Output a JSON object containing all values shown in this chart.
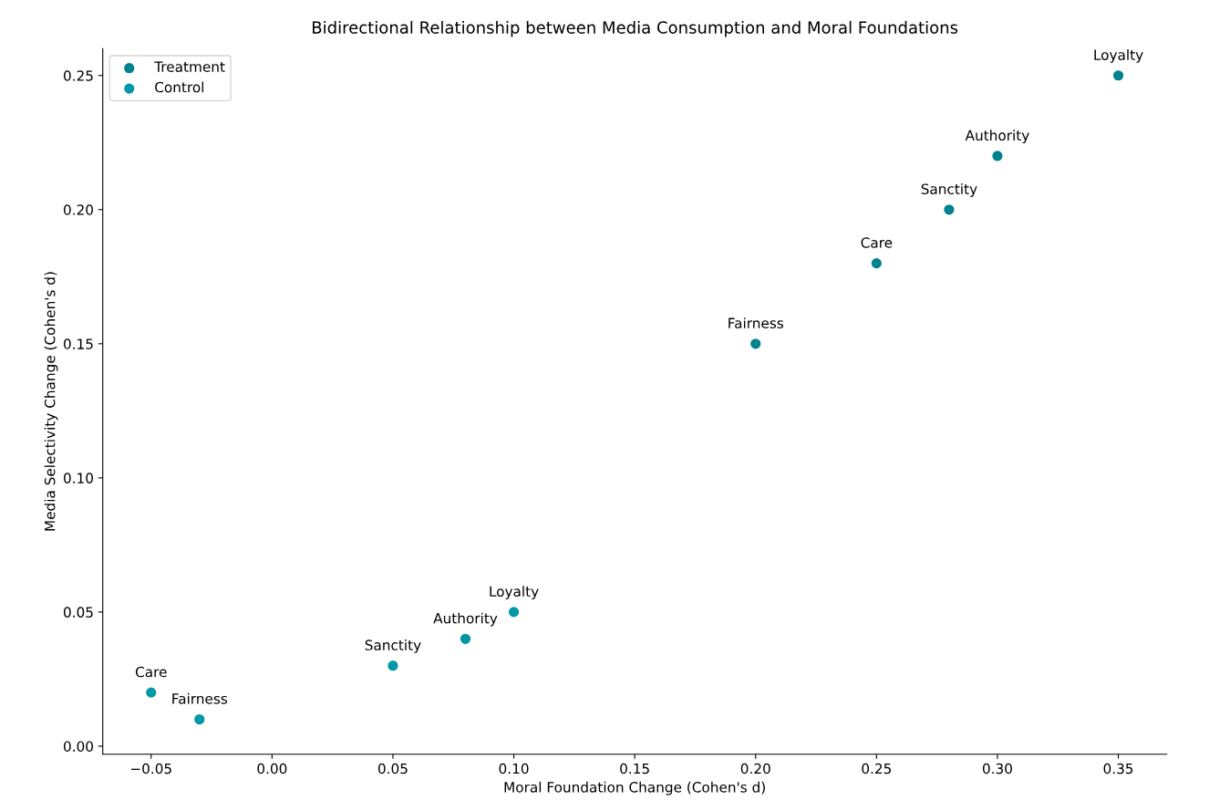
{
  "chart_data": {
    "type": "scatter",
    "title": "Bidirectional Relationship between Media Consumption and Moral Foundations",
    "xlabel": "Moral Foundation Change (Cohen's d)",
    "ylabel": "Media Selectivity Change (Cohen's d)",
    "series": [
      {
        "name": "Treatment",
        "color": "#00838f",
        "x": [
          0.25,
          0.2,
          0.35,
          0.3,
          0.28
        ],
        "values": [
          0.18,
          0.15,
          0.25,
          0.22,
          0.2
        ]
      },
      {
        "name": "Control",
        "color": "#0097a7",
        "x": [
          -0.05,
          -0.03,
          0.1,
          0.08,
          0.05
        ],
        "values": [
          0.02,
          0.01,
          0.05,
          0.04,
          0.03
        ]
      }
    ],
    "annotations": [
      {
        "text": "Care",
        "x": 0.25,
        "y": 0.18
      },
      {
        "text": "Fairness",
        "x": 0.2,
        "y": 0.15
      },
      {
        "text": "Loyalty",
        "x": 0.35,
        "y": 0.25
      },
      {
        "text": "Authority",
        "x": 0.3,
        "y": 0.22
      },
      {
        "text": "Sanctity",
        "x": 0.28,
        "y": 0.2
      },
      {
        "text": "Care",
        "x": -0.05,
        "y": 0.02
      },
      {
        "text": "Fairness",
        "x": -0.03,
        "y": 0.01
      },
      {
        "text": "Loyalty",
        "x": 0.1,
        "y": 0.05
      },
      {
        "text": "Authority",
        "x": 0.08,
        "y": 0.04
      },
      {
        "text": "Sanctity",
        "x": 0.05,
        "y": 0.03
      }
    ],
    "xlim": [
      -0.07,
      0.37
    ],
    "xticks": [
      {
        "value": -0.05,
        "label": "−0.05"
      },
      {
        "value": 0,
        "label": "0.00"
      },
      0.05,
      {
        "value": 0.1,
        "label": "0.10"
      },
      0.15,
      {
        "value": 0.2,
        "label": "0.20"
      },
      0.25,
      {
        "value": 0.3,
        "label": "0.30"
      },
      0.35
    ],
    "ylim": [
      -0.003,
      0.26
    ],
    "yticks": [
      {
        "value": 0,
        "label": "0.00"
      },
      0.05,
      {
        "value": 0.1,
        "label": "0.10"
      },
      0.15,
      {
        "value": 0.2,
        "label": "0.20"
      },
      0.25
    ],
    "marker": "circle",
    "legend": "top left",
    "grid": false
  }
}
